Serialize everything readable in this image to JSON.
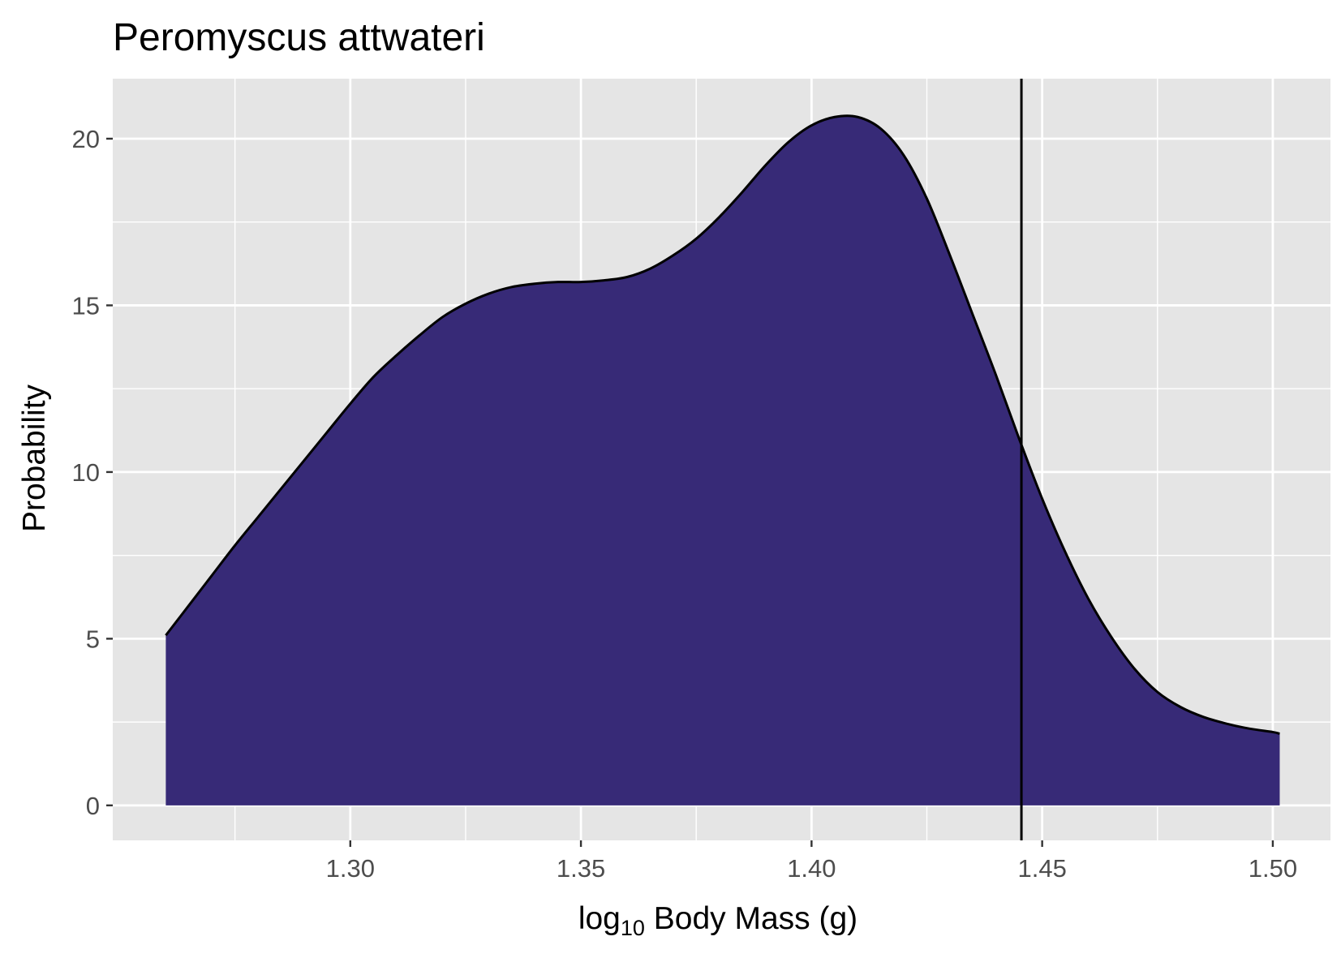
{
  "chart_data": {
    "type": "area",
    "title": "Peromyscus attwateri",
    "xlabel": {
      "prefix": "log",
      "subscript": "10",
      "suffix": " Body Mass (g)"
    },
    "ylabel": "Probability",
    "xlim": [
      1.2485,
      1.5125
    ],
    "ylim": [
      -1.05,
      21.8
    ],
    "x_ticks": [
      1.3,
      1.35,
      1.4,
      1.45,
      1.5
    ],
    "x_tick_labels": [
      "1.30",
      "1.35",
      "1.40",
      "1.45",
      "1.50"
    ],
    "y_ticks": [
      0,
      5,
      10,
      15,
      20
    ],
    "y_tick_labels": [
      "0",
      "5",
      "10",
      "15",
      "20"
    ],
    "grid": true,
    "fill_color": "#372a77",
    "line_color": "#000000",
    "panel_background": "#e5e5e5",
    "vline": {
      "x": 1.4455,
      "color": "#000000"
    },
    "series": [
      {
        "x": [
          1.26,
          1.265,
          1.27,
          1.275,
          1.28,
          1.285,
          1.29,
          1.295,
          1.3,
          1.305,
          1.31,
          1.315,
          1.32,
          1.325,
          1.33,
          1.335,
          1.34,
          1.345,
          1.35,
          1.355,
          1.36,
          1.365,
          1.37,
          1.375,
          1.38,
          1.385,
          1.39,
          1.395,
          1.4,
          1.405,
          1.41,
          1.415,
          1.42,
          1.425,
          1.43,
          1.435,
          1.44,
          1.445,
          1.45,
          1.455,
          1.46,
          1.465,
          1.47,
          1.475,
          1.48,
          1.485,
          1.49,
          1.495,
          1.5,
          1.5015
        ],
        "y": [
          5.1,
          6.0,
          6.9,
          7.8,
          8.65,
          9.5,
          10.35,
          11.2,
          12.05,
          12.85,
          13.5,
          14.1,
          14.65,
          15.05,
          15.35,
          15.55,
          15.65,
          15.7,
          15.7,
          15.75,
          15.85,
          16.1,
          16.5,
          17.0,
          17.65,
          18.4,
          19.2,
          19.9,
          20.4,
          20.65,
          20.65,
          20.3,
          19.5,
          18.2,
          16.5,
          14.7,
          12.9,
          11.0,
          9.2,
          7.6,
          6.2,
          5.05,
          4.1,
          3.4,
          2.95,
          2.65,
          2.45,
          2.3,
          2.2,
          2.15
        ]
      }
    ]
  }
}
